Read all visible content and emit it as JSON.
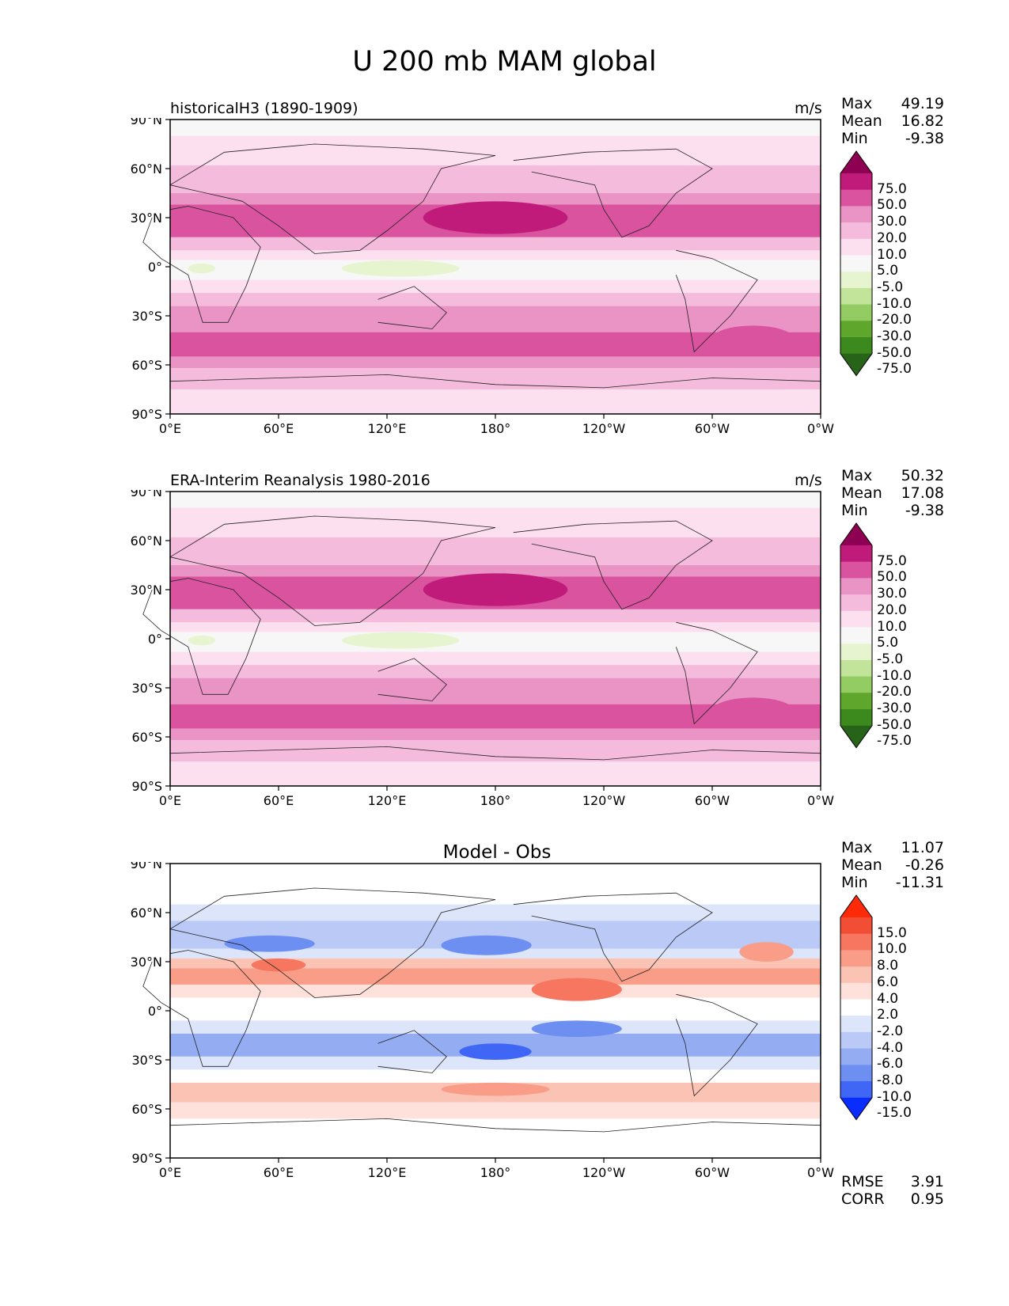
{
  "figure": {
    "title": "U 200 mb MAM global"
  },
  "axes": {
    "lat_labels": [
      "90°N",
      "60°N",
      "30°N",
      "0°",
      "30°S",
      "60°S",
      "90°S"
    ],
    "lon_labels": [
      "0°E",
      "60°E",
      "120°E",
      "180°",
      "120°W",
      "60°W",
      "0°W"
    ]
  },
  "legend_labels": {
    "max": "Max",
    "mean": "Mean",
    "min": "Min",
    "rmse": "RMSE",
    "corr": "CORR"
  },
  "colors": {
    "field_levels": [
      "#276419",
      "#3c8a1e",
      "#5ea72c",
      "#93cc62",
      "#c2e49a",
      "#e6f5d0",
      "#f7f7f7",
      "#fde0ef",
      "#f4bbdc",
      "#ea93c5",
      "#d9539e",
      "#c01b7b",
      "#8e0152"
    ],
    "diff_levels": [
      "#0a2dff",
      "#3f66f5",
      "#6e8ff2",
      "#94adf2",
      "#bac9f5",
      "#dde5fa",
      "#ffffff",
      "#fde1da",
      "#fbc3b4",
      "#f99d88",
      "#f6765f",
      "#f24e35",
      "#ff2a08"
    ]
  },
  "chart_data": [
    {
      "type": "heatmap",
      "panel": "model",
      "title": "historicalH3 (1890-1909)",
      "units": "m/s",
      "max": "49.19",
      "mean": "16.82",
      "min": "-9.38",
      "colorbar": {
        "levels": [
          "-75.0",
          "-50.0",
          "-30.0",
          "-20.0",
          "-10.0",
          "-5.0",
          "5.0",
          "10.0",
          "20.0",
          "30.0",
          "50.0",
          "75.0"
        ]
      },
      "lat_range": [
        -90,
        90
      ],
      "lon_range": [
        0,
        360
      ]
    },
    {
      "type": "heatmap",
      "panel": "obs",
      "title": "ERA-Interim Reanalysis 1980-2016",
      "units": "m/s",
      "max": "50.32",
      "mean": "17.08",
      "min": "-9.38",
      "colorbar": {
        "levels": [
          "-75.0",
          "-50.0",
          "-30.0",
          "-20.0",
          "-10.0",
          "-5.0",
          "5.0",
          "10.0",
          "20.0",
          "30.0",
          "50.0",
          "75.0"
        ]
      },
      "lat_range": [
        -90,
        90
      ],
      "lon_range": [
        0,
        360
      ]
    },
    {
      "type": "heatmap",
      "panel": "diff",
      "title": "Model - Obs",
      "units": "",
      "max": "11.07",
      "mean": "-0.26",
      "min": "-11.31",
      "rmse": "3.91",
      "corr": "0.95",
      "colorbar": {
        "levels": [
          "-15.0",
          "-10.0",
          "-8.0",
          "-6.0",
          "-4.0",
          "-2.0",
          "2.0",
          "4.0",
          "6.0",
          "8.0",
          "10.0",
          "15.0"
        ]
      },
      "lat_range": [
        -90,
        90
      ],
      "lon_range": [
        0,
        360
      ]
    }
  ]
}
